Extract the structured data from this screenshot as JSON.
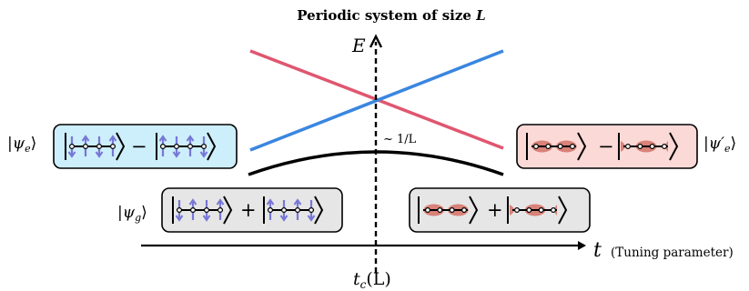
{
  "title": "Periodic system of size L",
  "title_prefix": "Periodic system of size ",
  "title_var": "L",
  "axis_y_label": "E",
  "axis_x_label": "t",
  "axis_x_note": "(Tuning parameter)",
  "critical_label": "t",
  "critical_sub": "c",
  "critical_arg": "(L)",
  "gap_label": "~ 1/L",
  "psi_e": "ψ",
  "psi_e_sub": "e",
  "psi_e_prime": "ψ′",
  "psi_e_prime_sub": "e",
  "psi_g": "ψ",
  "psi_g_sub": "g",
  "minus": "−",
  "plus": "+",
  "colors": {
    "pink_line": "#e0566f",
    "blue_line": "#3a86e0",
    "box_blue": "#cdeefb",
    "box_pink": "#fbd9d6",
    "box_gray": "#e6e6e6",
    "spin_arrow": "#7777d6",
    "dimer_ellipse": "#d9827a"
  }
}
